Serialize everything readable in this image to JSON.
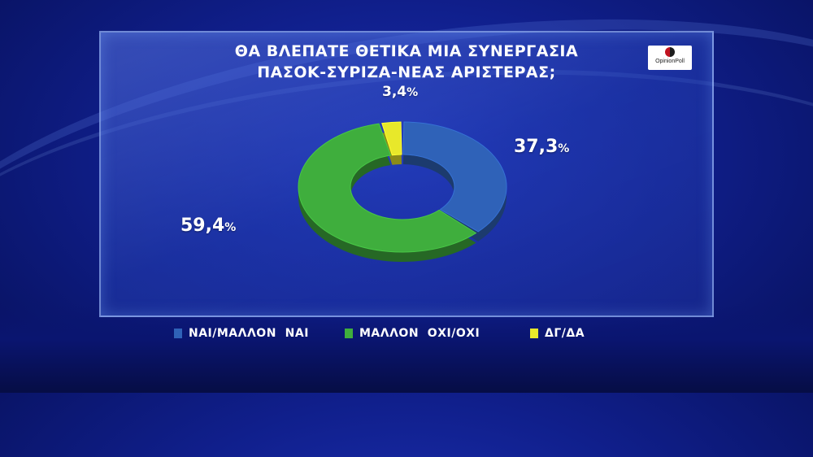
{
  "chart_data": {
    "type": "pie",
    "title": "ΘΑ ΒΛΕΠΑΤΕ ΘΕΤΙΚΑ ΜΙΑ ΣΥΝΕΡΓΑΣΙΑ",
    "subtitle": "ΠΑΣΟΚ-ΣΥΡΙΖΑ-ΝΕΑΣ ΑΡΙΣΤΕΡΑΣ;",
    "unit": "%",
    "categories": [
      "ΝΑΙ/ΜΑΛΛΟΝ  ΝΑΙ",
      "ΜΑΛΛΟΝ  ΟΧΙ/ΟΧΙ",
      "ΔΓ/ΔΑ"
    ],
    "values": [
      37.3,
      59.4,
      3.4
    ],
    "labels": [
      "37,3",
      "59,4",
      "3,4"
    ],
    "colors": [
      "#2f62b8",
      "#3fae3d",
      "#e8e82a"
    ],
    "legend_position": "bottom"
  },
  "logo": {
    "text": "OpinionPoll"
  }
}
